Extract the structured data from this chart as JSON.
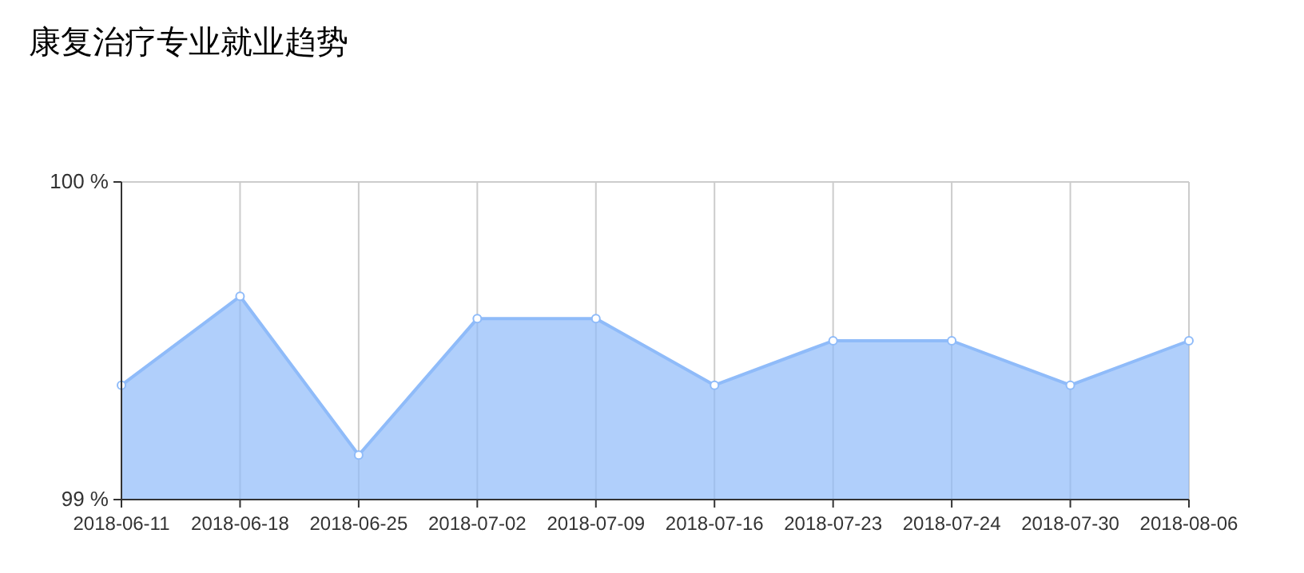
{
  "chart_data": {
    "type": "area",
    "title": "康复治疗专业就业趋势",
    "categories": [
      "2018-06-11",
      "2018-06-18",
      "2018-06-25",
      "2018-07-02",
      "2018-07-09",
      "2018-07-16",
      "2018-07-23",
      "2018-07-24",
      "2018-07-30",
      "2018-08-06"
    ],
    "series": [
      {
        "color": "#8fbbf9",
        "values": [
          99.36,
          99.64,
          99.14,
          99.57,
          99.57,
          99.36,
          99.5,
          99.5,
          99.36,
          99.5
        ]
      }
    ],
    "ylim": [
      99,
      100
    ],
    "yticks": [
      {
        "value": 99,
        "label": "99 %"
      },
      {
        "value": 100,
        "label": "100 %"
      }
    ],
    "grid": true,
    "marker": "circle"
  }
}
